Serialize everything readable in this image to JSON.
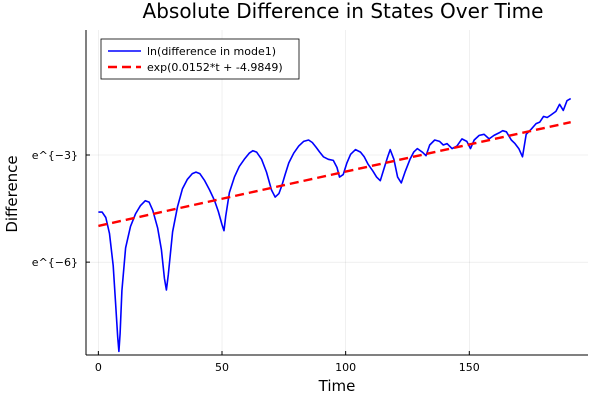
{
  "chart_data": {
    "type": "line",
    "title": "Absolute Difference in States Over Time",
    "xlabel": "Time",
    "ylabel": "Difference",
    "xlim": [
      -5,
      198
    ],
    "ylim": [
      -8.6,
      0.5
    ],
    "grid": true,
    "legend_position": "top-left",
    "x_ticks": [
      {
        "value": 0,
        "label": "0"
      },
      {
        "value": 50,
        "label": "50"
      },
      {
        "value": 100,
        "label": "100"
      },
      {
        "value": 150,
        "label": "150"
      }
    ],
    "y_ticks": [
      {
        "value": -3,
        "label": "e^{−3}"
      },
      {
        "value": -6,
        "label": "e^{−6}"
      }
    ],
    "series": [
      {
        "name": "ln(difference in mode1)",
        "color": "#0000ff",
        "style": "solid",
        "x": [
          0,
          1.5,
          3,
          4.5,
          6,
          7,
          7.8,
          8.3,
          8.8,
          9.5,
          11,
          13,
          15,
          17,
          19,
          20.5,
          22,
          24,
          25.5,
          26.7,
          27.5,
          28.3,
          30,
          32,
          34,
          36,
          38,
          39.5,
          41,
          43,
          45,
          47,
          48.5,
          50,
          50.8,
          51.5,
          53,
          55,
          57,
          59,
          61,
          62.5,
          64,
          66,
          68,
          70,
          71.5,
          73,
          74.2,
          75.5,
          77,
          79,
          81,
          83,
          85,
          86.5,
          88,
          89.5,
          91,
          93,
          95,
          96.5,
          97.5,
          99,
          100.5,
          102,
          104,
          106,
          107.5,
          109,
          111,
          112.5,
          114,
          115.5,
          117,
          118,
          119.5,
          121,
          122.5,
          124,
          126,
          127.5,
          129,
          131,
          132.5,
          134,
          136,
          138,
          139.5,
          141,
          143,
          145,
          147,
          149,
          150.5,
          152,
          154,
          156,
          158,
          160,
          162,
          163.5,
          165,
          167,
          168.5,
          170,
          171.5,
          173,
          175,
          177,
          178.5,
          180,
          181.5,
          183,
          185,
          186.5,
          188,
          189.5,
          191
        ],
        "y": [
          -4.6,
          -4.6,
          -4.75,
          -5.2,
          -6.1,
          -7.2,
          -8.1,
          -8.5,
          -8.0,
          -6.8,
          -5.6,
          -5.0,
          -4.65,
          -4.42,
          -4.28,
          -4.32,
          -4.55,
          -5.05,
          -5.65,
          -6.45,
          -6.78,
          -6.35,
          -5.15,
          -4.45,
          -3.95,
          -3.68,
          -3.52,
          -3.48,
          -3.52,
          -3.72,
          -3.98,
          -4.28,
          -4.58,
          -4.95,
          -5.12,
          -4.72,
          -4.05,
          -3.62,
          -3.32,
          -3.12,
          -2.95,
          -2.88,
          -2.92,
          -3.12,
          -3.48,
          -3.98,
          -4.18,
          -4.08,
          -3.85,
          -3.55,
          -3.22,
          -2.95,
          -2.75,
          -2.62,
          -2.58,
          -2.65,
          -2.78,
          -2.92,
          -3.05,
          -3.12,
          -3.15,
          -3.35,
          -3.62,
          -3.55,
          -3.22,
          -2.98,
          -2.85,
          -2.92,
          -3.05,
          -3.25,
          -3.45,
          -3.62,
          -3.72,
          -3.38,
          -3.05,
          -2.85,
          -3.12,
          -3.62,
          -3.78,
          -3.48,
          -3.12,
          -2.92,
          -2.82,
          -2.92,
          -3.02,
          -2.72,
          -2.58,
          -2.62,
          -2.72,
          -2.68,
          -2.82,
          -2.75,
          -2.55,
          -2.62,
          -2.82,
          -2.58,
          -2.45,
          -2.42,
          -2.55,
          -2.45,
          -2.38,
          -2.32,
          -2.35,
          -2.58,
          -2.68,
          -2.82,
          -3.05,
          -2.42,
          -2.28,
          -2.12,
          -2.08,
          -1.92,
          -1.95,
          -1.88,
          -1.78,
          -1.58,
          -1.75,
          -1.48,
          -1.42
        ]
      },
      {
        "name": "exp(0.0152*t + -4.9849)",
        "color": "#ff0000",
        "style": "dashed",
        "x": [
          0,
          191
        ],
        "y": [
          -4.9849,
          -2.0817
        ]
      }
    ]
  }
}
